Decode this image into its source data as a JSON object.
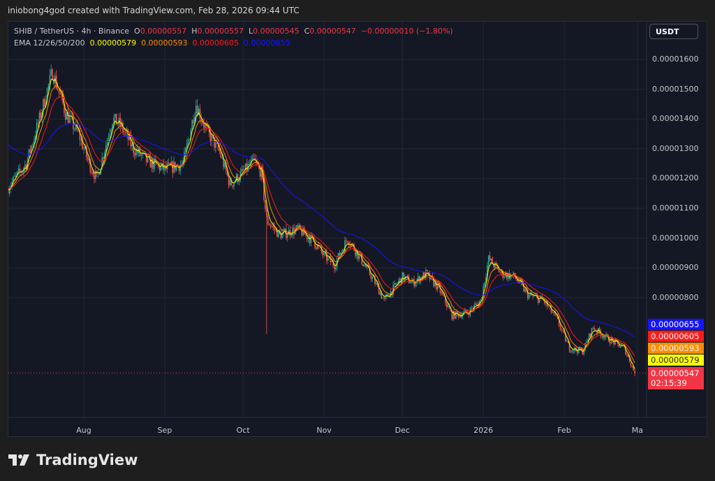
{
  "caption": "iniobong4god created with TradingView.com, Feb 28, 2026 09:44 UTC",
  "legend": {
    "symbol": "SHIB / TetherUS · 4h · Binance",
    "o_label": "O",
    "o": "0.00000557",
    "h_label": "H",
    "h": "0.00000557",
    "l_label": "L",
    "l": "0.00000545",
    "c_label": "C",
    "c": "0.00000547",
    "change": "−0.00000010 (−1.80%)",
    "ema_label": "EMA 12/26/50/200",
    "ema12": "0.00000579",
    "ema26": "0.00000593",
    "ema50": "0.00000605",
    "ema200": "0.00000655"
  },
  "currency_button": "USDT",
  "price_tags": {
    "ema200": "0.00000655",
    "ema50": "0.00000605",
    "ema26": "0.00000593",
    "ema12": "0.00000579",
    "last": "0.00000547",
    "countdown": "02:15:39"
  },
  "colors": {
    "up": "#26a69a",
    "down": "#ef5350",
    "ema12": "#ffff00",
    "ema26": "#ff8c00",
    "ema50": "#ff1a1a",
    "ema200": "#1414ff",
    "last": "#f23645"
  },
  "logo_text": "TradingView",
  "chart_data": {
    "type": "candlestick",
    "title": "SHIB / TetherUS · 4h · Binance",
    "y_unit": "1e-8 USDT",
    "yticks": [
      "0.00001600",
      "0.00001500",
      "0.00001400",
      "0.00001300",
      "0.00001200",
      "0.00001100",
      "0.00001000",
      "0.00000900",
      "0.00000800"
    ],
    "xticks": [
      "Aug",
      "Sep",
      "Oct",
      "Nov",
      "Dec",
      "2026",
      "Feb",
      "Ma"
    ],
    "ylim": [
      480,
      1660
    ],
    "xlim": [
      "2025-07-03",
      "2026-03-01"
    ],
    "grid": true,
    "path": [
      [
        "2025-07-03",
        1170
      ],
      [
        "2025-07-10",
        1250
      ],
      [
        "2025-07-15",
        1400
      ],
      [
        "2025-07-20",
        1560
      ],
      [
        "2025-07-25",
        1420
      ],
      [
        "2025-07-30",
        1350
      ],
      [
        "2025-08-03",
        1250
      ],
      [
        "2025-08-06",
        1200
      ],
      [
        "2025-08-12",
        1400
      ],
      [
        "2025-08-15",
        1380
      ],
      [
        "2025-08-20",
        1300
      ],
      [
        "2025-08-25",
        1260
      ],
      [
        "2025-09-01",
        1230
      ],
      [
        "2025-09-08",
        1250
      ],
      [
        "2025-09-13",
        1450
      ],
      [
        "2025-09-17",
        1360
      ],
      [
        "2025-09-22",
        1290
      ],
      [
        "2025-09-26",
        1180
      ],
      [
        "2025-10-01",
        1220
      ],
      [
        "2025-10-05",
        1260
      ],
      [
        "2025-10-08",
        1220
      ],
      [
        "2025-10-10",
        1060
      ],
      [
        "2025-10-15",
        1010
      ],
      [
        "2025-10-22",
        1030
      ],
      [
        "2025-10-28",
        990
      ],
      [
        "2025-11-01",
        940
      ],
      [
        "2025-11-05",
        910
      ],
      [
        "2025-11-10",
        1000
      ],
      [
        "2025-11-15",
        930
      ],
      [
        "2025-11-20",
        860
      ],
      [
        "2025-11-24",
        790
      ],
      [
        "2025-12-01",
        870
      ],
      [
        "2025-12-05",
        850
      ],
      [
        "2025-12-10",
        880
      ],
      [
        "2025-12-15",
        830
      ],
      [
        "2025-12-20",
        740
      ],
      [
        "2025-12-26",
        750
      ],
      [
        "2025-12-31",
        790
      ],
      [
        "2026-01-03",
        930
      ],
      [
        "2026-01-08",
        880
      ],
      [
        "2026-01-13",
        870
      ],
      [
        "2026-01-18",
        810
      ],
      [
        "2026-01-24",
        790
      ],
      [
        "2026-01-29",
        730
      ],
      [
        "2026-02-03",
        630
      ],
      [
        "2026-02-08",
        620
      ],
      [
        "2026-02-12",
        700
      ],
      [
        "2026-02-18",
        660
      ],
      [
        "2026-02-24",
        630
      ],
      [
        "2026-02-28",
        547
      ]
    ],
    "wick_low": [
      "2025-10-10",
      678
    ],
    "emas": [
      12,
      26,
      50,
      200
    ],
    "last_price": 547
  }
}
